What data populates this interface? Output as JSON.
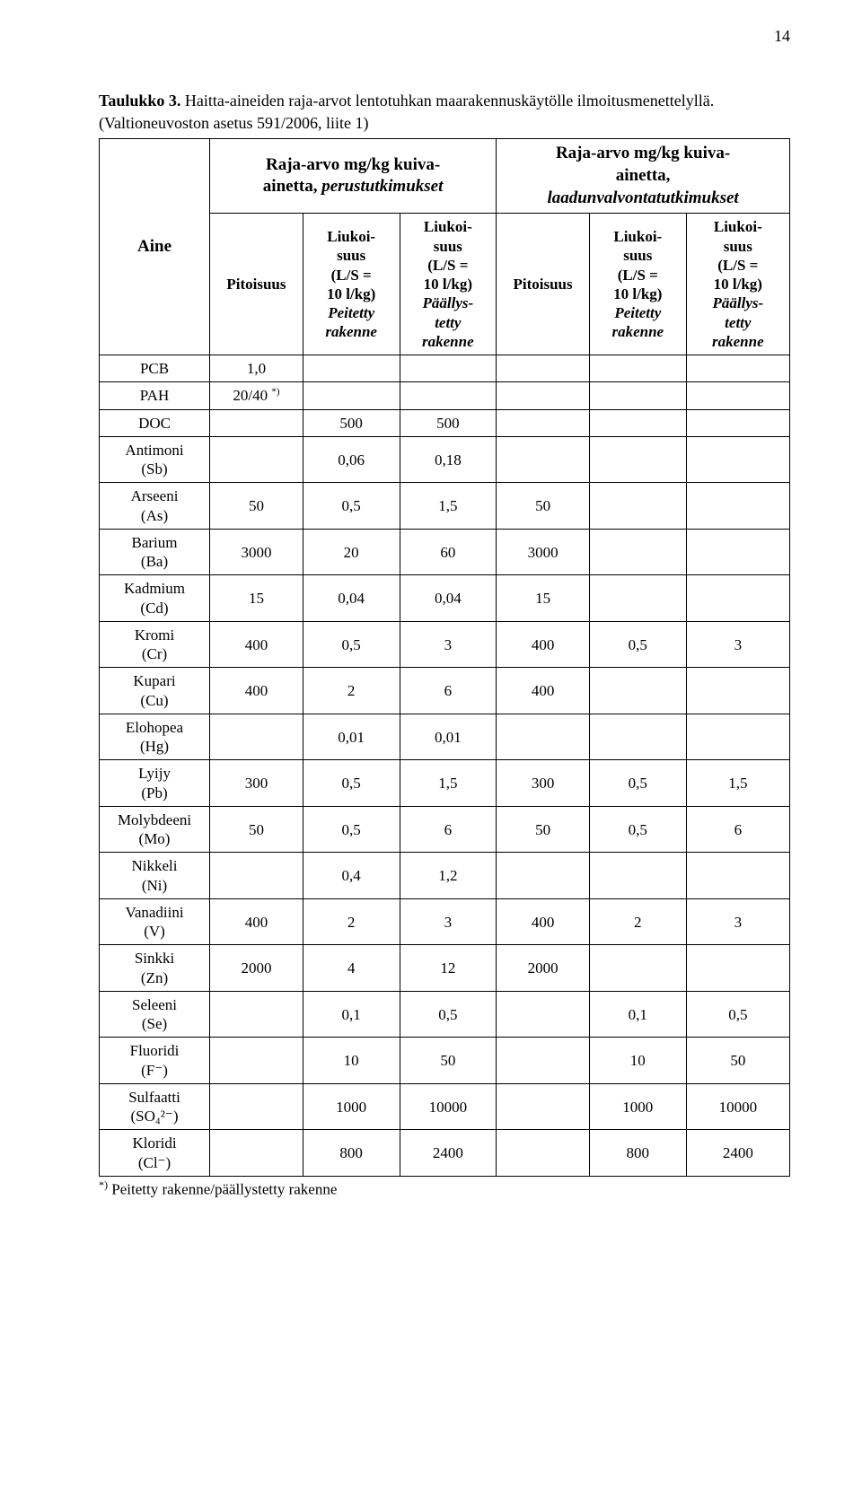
{
  "page_number": "14",
  "caption_bold": "Taulukko 3.",
  "caption_rest": " Haitta-aineiden raja-arvot lentotuhkan maarakennuskäytölle ilmoitusmenettelyllä.",
  "caption_line2": "(Valtioneuvoston asetus 591/2006, liite 1)",
  "headers": {
    "aine": "Aine",
    "group1_line1": "Raja-arvo mg/kg kuiva-",
    "group1_line2": "ainetta, ",
    "group1_ital": "perustutkimukset",
    "group2_line1": "Raja-arvo mg/kg kuiva-",
    "group2_line2": "ainetta,",
    "group2_ital": "laadunvalvontatutkimukset",
    "pitoisuus": "Pitoisuus",
    "liuk_label": "Liukoi-\nsuus\n(L/S =\n10 l/kg)",
    "peitetty": "Peitetty\nrakenne",
    "paallys": "Päällys-\ntetty\nrakenne"
  },
  "rows": [
    {
      "label": "PCB",
      "pit": "1,0",
      "pei": "",
      "paa": "",
      "pit2": "",
      "pei2": "",
      "paa2": ""
    },
    {
      "label": "PAH",
      "pit": "20/40 ",
      "pit_sup": "*)",
      "pei": "",
      "paa": "",
      "pit2": "",
      "pei2": "",
      "paa2": ""
    },
    {
      "label": "DOC",
      "pit": "",
      "pei": "500",
      "paa": "500",
      "pit2": "",
      "pei2": "",
      "paa2": ""
    },
    {
      "label": "Antimoni\n(Sb)",
      "pit": "",
      "pei": "0,06",
      "paa": "0,18",
      "pit2": "",
      "pei2": "",
      "paa2": ""
    },
    {
      "label": "Arseeni\n(As)",
      "pit": "50",
      "pei": "0,5",
      "paa": "1,5",
      "pit2": "50",
      "pei2": "",
      "paa2": ""
    },
    {
      "label": "Barium\n(Ba)",
      "pit": "3000",
      "pei": "20",
      "paa": "60",
      "pit2": "3000",
      "pei2": "",
      "paa2": ""
    },
    {
      "label": "Kadmium\n(Cd)",
      "pit": "15",
      "pei": "0,04",
      "paa": "0,04",
      "pit2": "15",
      "pei2": "",
      "paa2": ""
    },
    {
      "label": "Kromi\n(Cr)",
      "pit": "400",
      "pei": "0,5",
      "paa": "3",
      "pit2": "400",
      "pei2": "0,5",
      "paa2": "3"
    },
    {
      "label": "Kupari\n(Cu)",
      "pit": "400",
      "pei": "2",
      "paa": "6",
      "pit2": "400",
      "pei2": "",
      "paa2": ""
    },
    {
      "label": "Elohopea\n(Hg)",
      "pit": "",
      "pei": "0,01",
      "paa": "0,01",
      "pit2": "",
      "pei2": "",
      "paa2": ""
    },
    {
      "label": "Lyijy\n(Pb)",
      "pit": "300",
      "pei": "0,5",
      "paa": "1,5",
      "pit2": "300",
      "pei2": "0,5",
      "paa2": "1,5"
    },
    {
      "label": "Molybdeeni\n(Mo)",
      "pit": "50",
      "pei": "0,5",
      "paa": "6",
      "pit2": "50",
      "pei2": "0,5",
      "paa2": "6"
    },
    {
      "label": "Nikkeli\n(Ni)",
      "pit": "",
      "pei": "0,4",
      "paa": "1,2",
      "pit2": "",
      "pei2": "",
      "paa2": ""
    },
    {
      "label": "Vanadiini\n(V)",
      "pit": "400",
      "pei": "2",
      "paa": "3",
      "pit2": "400",
      "pei2": "2",
      "paa2": "3"
    },
    {
      "label": "Sinkki\n(Zn)",
      "pit": "2000",
      "pei": "4",
      "paa": "12",
      "pit2": "2000",
      "pei2": "",
      "paa2": ""
    },
    {
      "label": "Seleeni\n(Se)",
      "pit": "",
      "pei": "0,1",
      "paa": "0,5",
      "pit2": "",
      "pei2": "0,1",
      "paa2": "0,5"
    },
    {
      "label": "Fluoridi\n(F⁻)",
      "pit": "",
      "pei": "10",
      "paa": "50",
      "pit2": "",
      "pei2": "10",
      "paa2": "50"
    },
    {
      "label": "Sulfaatti\n(SO₄²⁻)",
      "pit": "",
      "pei": "1000",
      "paa": "10000",
      "pit2": "",
      "pei2": "1000",
      "paa2": "10000"
    },
    {
      "label": "Kloridi\n(Cl⁻)",
      "pit": "",
      "pei": "800",
      "paa": "2400",
      "pit2": "",
      "pei2": "800",
      "paa2": "2400"
    }
  ],
  "footnote_sup": "*)",
  "footnote_text": " Peitetty rakenne/päällystetty rakenne"
}
